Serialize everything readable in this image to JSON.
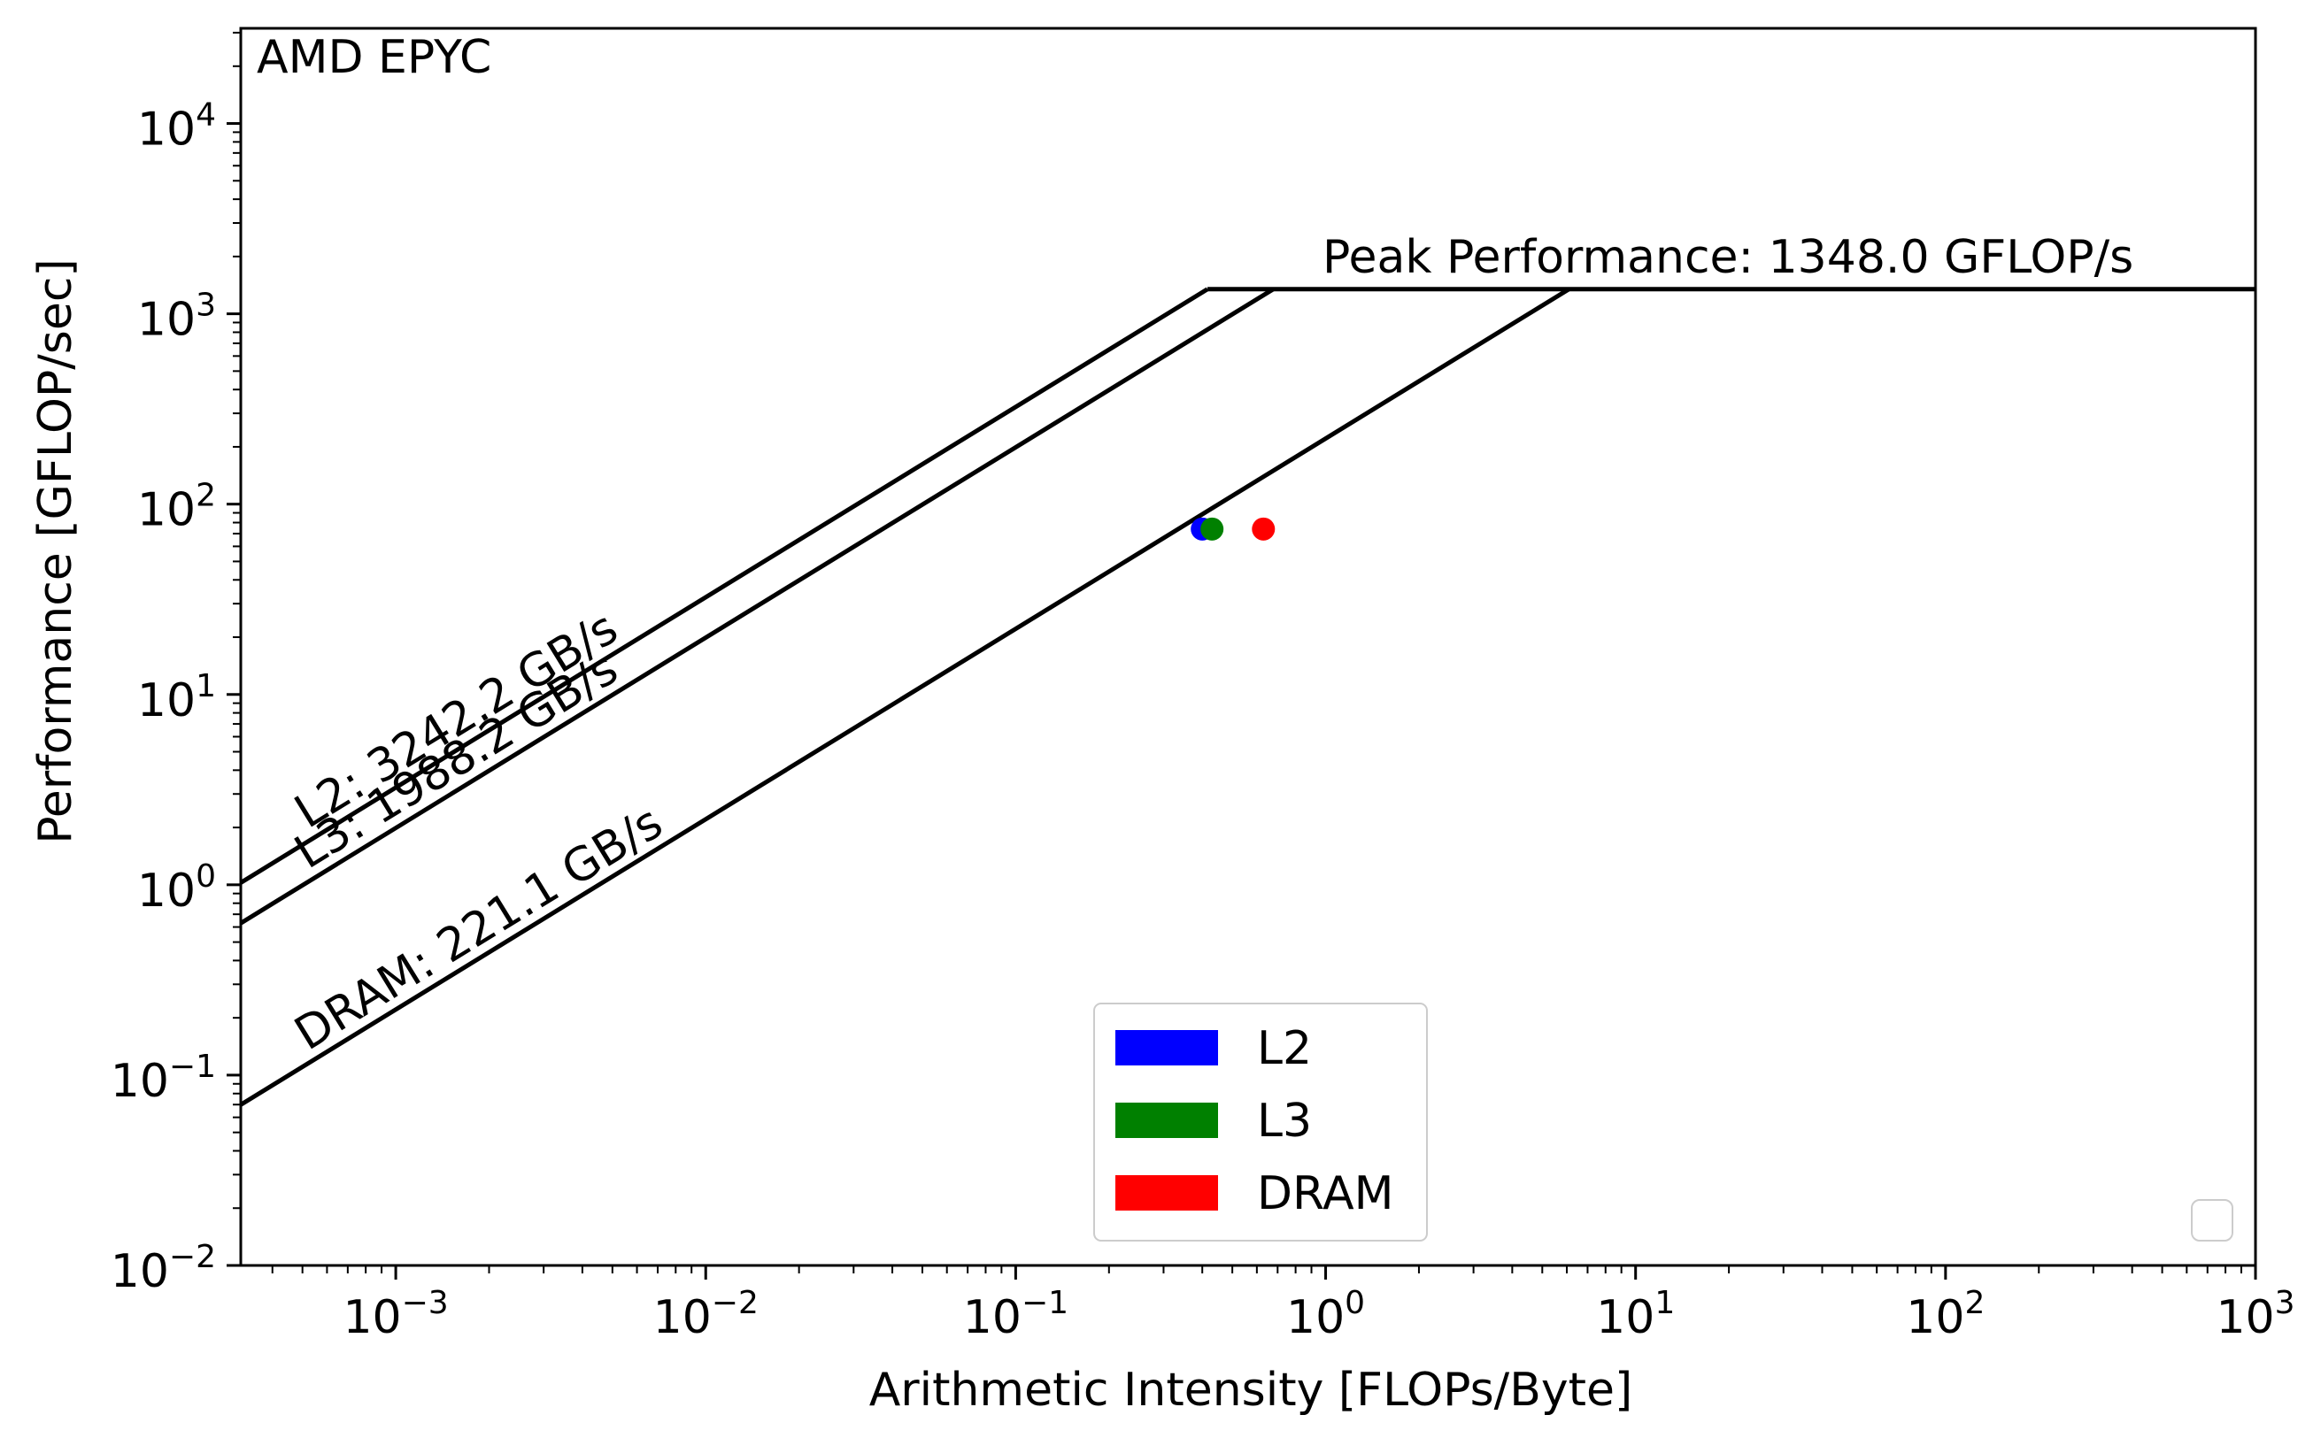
{
  "chart_data": {
    "type": "line",
    "title": "AMD EPYC",
    "xlabel": "Arithmetic Intensity [FLOPs/Byte]",
    "ylabel": "Performance [GFLOP/sec]",
    "xscale": "log",
    "yscale": "log",
    "xlim": [
      0.0003162,
      1000
    ],
    "ylim": [
      0.01,
      31623
    ],
    "x_ticks": [
      {
        "value": 0.001,
        "base": "10",
        "exp": "−3"
      },
      {
        "value": 0.01,
        "base": "10",
        "exp": "−2"
      },
      {
        "value": 0.1,
        "base": "10",
        "exp": "−1"
      },
      {
        "value": 1,
        "base": "10",
        "exp": "0"
      },
      {
        "value": 10,
        "base": "10",
        "exp": "1"
      },
      {
        "value": 100,
        "base": "10",
        "exp": "2"
      },
      {
        "value": 1000,
        "base": "10",
        "exp": "3"
      }
    ],
    "y_ticks": [
      {
        "value": 0.01,
        "base": "10",
        "exp": "−2"
      },
      {
        "value": 0.1,
        "base": "10",
        "exp": "−1"
      },
      {
        "value": 1,
        "base": "10",
        "exp": "0"
      },
      {
        "value": 10,
        "base": "10",
        "exp": "1"
      },
      {
        "value": 100,
        "base": "10",
        "exp": "2"
      },
      {
        "value": 1000,
        "base": "10",
        "exp": "3"
      },
      {
        "value": 10000,
        "base": "10",
        "exp": "4"
      }
    ],
    "peak": {
      "value": 1348.0,
      "label": "Peak Performance: 1348.0 GFLOP/s"
    },
    "bandwidth_roofs": [
      {
        "name": "L2",
        "bandwidth": 3242.2,
        "label": "L2: 3242.2 GB/s"
      },
      {
        "name": "L3",
        "bandwidth": 1988.2,
        "label": "L3: 1988.2 GB/s"
      },
      {
        "name": "DRAM",
        "bandwidth": 221.1,
        "label": "DRAM: 221.1 GB/s"
      }
    ],
    "series": [
      {
        "name": "L2",
        "color": "#0000ff",
        "points": [
          {
            "x": 0.4,
            "y": 74
          }
        ]
      },
      {
        "name": "L3",
        "color": "#008000",
        "points": [
          {
            "x": 0.43,
            "y": 74
          }
        ]
      },
      {
        "name": "DRAM",
        "color": "#ff0000",
        "points": [
          {
            "x": 0.63,
            "y": 74
          }
        ]
      }
    ],
    "legend": {
      "position": "lower-center",
      "entries": [
        {
          "label": "L2",
          "color": "#0000ff"
        },
        {
          "label": "L3",
          "color": "#008000"
        },
        {
          "label": "DRAM",
          "color": "#ff0000"
        }
      ]
    }
  }
}
